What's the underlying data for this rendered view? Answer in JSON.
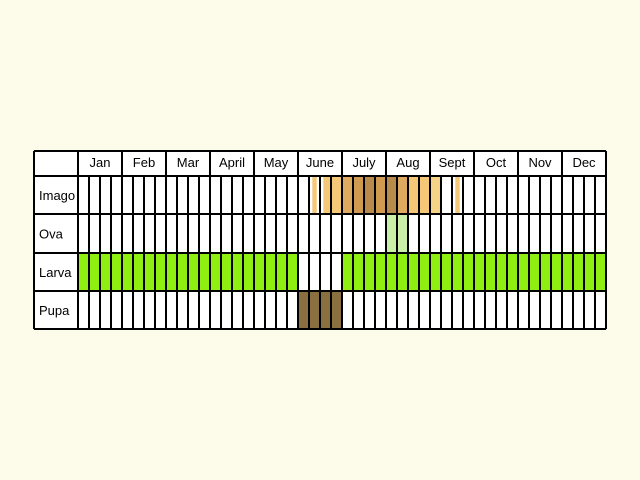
{
  "chart_data": {
    "type": "table",
    "months": [
      "Jan",
      "Feb",
      "Mar",
      "April",
      "May",
      "June",
      "July",
      "Aug",
      "Sept",
      "Oct",
      "Nov",
      "Dec"
    ],
    "weeks_per_month": 4,
    "stages": [
      {
        "label": "Imago",
        "segments": [
          {
            "from_week": 21.3,
            "to_week": 21.7,
            "color": "#f5c878"
          },
          {
            "from_week": 22.3,
            "to_week": 24.0,
            "color": "#f5c878"
          },
          {
            "from_week": 24.0,
            "to_week": 25.0,
            "color": "#deaa60"
          },
          {
            "from_week": 25.0,
            "to_week": 26.0,
            "color": "#d09a50"
          },
          {
            "from_week": 26.0,
            "to_week": 27.0,
            "color": "#b88a4c"
          },
          {
            "from_week": 27.0,
            "to_week": 28.0,
            "color": "#d09a50"
          },
          {
            "from_week": 28.0,
            "to_week": 29.0,
            "color": "#b88a4c"
          },
          {
            "from_week": 29.0,
            "to_week": 30.0,
            "color": "#deaa60"
          },
          {
            "from_week": 30.0,
            "to_week": 32.0,
            "color": "#f5c878"
          },
          {
            "from_week": 32.0,
            "to_week": 33.0,
            "color": "#f5d488"
          },
          {
            "from_week": 34.3,
            "to_week": 34.7,
            "color": "#f5c878"
          }
        ]
      },
      {
        "label": "Ova",
        "segments": [
          {
            "from_week": 28.0,
            "to_week": 30.0,
            "color": "#c8f0a8"
          }
        ]
      },
      {
        "label": "Larva",
        "segments": [
          {
            "from_week": 0.0,
            "to_week": 20.0,
            "color": "#8eef10"
          },
          {
            "from_week": 24.0,
            "to_week": 48.0,
            "color": "#8eef10"
          }
        ]
      },
      {
        "label": "Pupa",
        "segments": [
          {
            "from_week": 20.0,
            "to_week": 24.0,
            "color": "#8a7040"
          }
        ]
      }
    ]
  },
  "colors": {
    "background": "#fdfbea",
    "cell_background": "#ffffff",
    "grid": "#000000"
  }
}
